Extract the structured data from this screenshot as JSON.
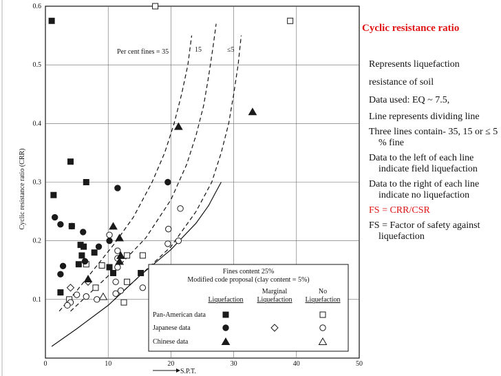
{
  "side_panel": {
    "title": "Cyclic resistance ratio",
    "items": [
      "Represents liquefaction",
      "resistance of soil",
      "Data used: EQ ~ 7.5,",
      "Line represents dividing line",
      "Three lines contain- 35, 15 or ≤ 5 % fine",
      "Data to the left of each line indicate field liquefaction",
      "Data to the right of each line indicate no liquefaction",
      "FS = CRR/CSR",
      "FS = Factor of safety against liquefaction"
    ],
    "highlight_color": "#e01414"
  },
  "chart_data": {
    "type": "scatter",
    "xlabel": "S.P.T.",
    "ylabel": "Cyclic resistance ratio (CRR)",
    "xlim": [
      0,
      50
    ],
    "ylim": [
      0,
      0.6
    ],
    "x_ticks": [
      0,
      10,
      20,
      30,
      40,
      50
    ],
    "y_ticks": [
      0.1,
      0.2,
      0.3,
      0.4,
      0.5,
      0.6
    ],
    "grid": true,
    "curve_labels": [
      "Per cent fines = 35",
      "15",
      "≤5"
    ],
    "curves": [
      {
        "label": "Per cent fines = 35",
        "style": "dashed",
        "points": [
          [
            2.2,
            0.08
          ],
          [
            5,
            0.115
          ],
          [
            8,
            0.155
          ],
          [
            11,
            0.195
          ],
          [
            14,
            0.24
          ],
          [
            17,
            0.3
          ],
          [
            19,
            0.35
          ],
          [
            20.5,
            0.4
          ],
          [
            21.7,
            0.45
          ],
          [
            22.7,
            0.5
          ],
          [
            23.3,
            0.55
          ]
        ]
      },
      {
        "label": "15",
        "style": "dashed",
        "points": [
          [
            4,
            0.08
          ],
          [
            8,
            0.12
          ],
          [
            12,
            0.16
          ],
          [
            16,
            0.205
          ],
          [
            20,
            0.27
          ],
          [
            22.5,
            0.33
          ],
          [
            24,
            0.38
          ],
          [
            25.2,
            0.43
          ],
          [
            26,
            0.48
          ],
          [
            26.7,
            0.53
          ],
          [
            27.2,
            0.57
          ]
        ]
      },
      {
        "label": "≤5",
        "style": "dashed",
        "points": [
          [
            11,
            0.1
          ],
          [
            15,
            0.14
          ],
          [
            20,
            0.19
          ],
          [
            24,
            0.25
          ],
          [
            26.5,
            0.3
          ],
          [
            28,
            0.35
          ],
          [
            29.2,
            0.4
          ],
          [
            30,
            0.45
          ],
          [
            30.7,
            0.5
          ],
          [
            31.2,
            0.55
          ]
        ]
      },
      {
        "label": "",
        "style": "solid",
        "points": [
          [
            1,
            0.02
          ],
          [
            5,
            0.05
          ],
          [
            10,
            0.09
          ],
          [
            15,
            0.14
          ],
          [
            20,
            0.185
          ],
          [
            24,
            0.23
          ],
          [
            26,
            0.26
          ],
          [
            27,
            0.28
          ],
          [
            28,
            0.3
          ]
        ]
      }
    ],
    "series": [
      {
        "name": "Pan-American data",
        "marker": "square",
        "category": "Liquefaction",
        "points": [
          [
            1,
            0.575
          ],
          [
            1.3,
            0.278
          ],
          [
            4,
            0.335
          ],
          [
            6.5,
            0.3
          ],
          [
            4.2,
            0.225
          ],
          [
            5.6,
            0.193
          ],
          [
            6.1,
            0.19
          ],
          [
            5.8,
            0.175
          ],
          [
            5.3,
            0.16
          ],
          [
            7.8,
            0.18
          ],
          [
            10.2,
            0.155
          ],
          [
            10.8,
            0.145
          ],
          [
            15.2,
            0.145
          ],
          [
            2.4,
            0.112
          ]
        ]
      },
      {
        "name": "Pan-American data",
        "marker": "square",
        "category": "Non-Liquefaction",
        "points": [
          [
            17.5,
            0.6
          ],
          [
            39,
            0.575
          ],
          [
            13,
            0.175
          ],
          [
            15.5,
            0.175
          ],
          [
            6.5,
            0.16
          ],
          [
            9,
            0.158
          ],
          [
            13,
            0.13
          ],
          [
            3.8,
            0.1
          ],
          [
            8,
            0.12
          ],
          [
            12.5,
            0.095
          ],
          [
            21.2,
            0.09
          ]
        ]
      },
      {
        "name": "Japanese data",
        "marker": "circle",
        "category": "Liquefaction",
        "points": [
          [
            1.5,
            0.24
          ],
          [
            2.4,
            0.228
          ],
          [
            4.2,
            0.225
          ],
          [
            2.8,
            0.157
          ],
          [
            6,
            0.215
          ],
          [
            6.3,
            0.165
          ],
          [
            2.4,
            0.143
          ],
          [
            8.5,
            0.19
          ],
          [
            10.2,
            0.2
          ],
          [
            11.5,
            0.29
          ],
          [
            19.5,
            0.3
          ]
        ]
      },
      {
        "name": "Japanese data",
        "marker": "circle",
        "category": "Non-Liquefaction",
        "points": [
          [
            10.2,
            0.21
          ],
          [
            21.5,
            0.255
          ],
          [
            19.6,
            0.22
          ],
          [
            21.2,
            0.2
          ],
          [
            19.5,
            0.195
          ],
          [
            11.5,
            0.183
          ],
          [
            11.5,
            0.17
          ],
          [
            11.5,
            0.155
          ],
          [
            11.2,
            0.13
          ],
          [
            12,
            0.115
          ],
          [
            11.2,
            0.11
          ],
          [
            15.5,
            0.12
          ],
          [
            19.5,
            0.12
          ],
          [
            6.5,
            0.105
          ],
          [
            8.2,
            0.1
          ],
          [
            5,
            0.108
          ],
          [
            4,
            0.095
          ],
          [
            3.5,
            0.09
          ]
        ]
      },
      {
        "name": "Japanese data",
        "marker": "diamond",
        "category": "Marginal Liquefaction",
        "points": [
          [
            6.8,
            0.13
          ],
          [
            4,
            0.12
          ]
        ]
      },
      {
        "name": "Chinese data",
        "marker": "triangle",
        "category": "Liquefaction",
        "points": [
          [
            33,
            0.42
          ],
          [
            21.2,
            0.395
          ],
          [
            10.8,
            0.225
          ],
          [
            11.8,
            0.205
          ],
          [
            12,
            0.175
          ],
          [
            11.8,
            0.165
          ],
          [
            6.8,
            0.135
          ]
        ]
      },
      {
        "name": "Chinese data",
        "marker": "triangle",
        "category": "Non-Liquefaction",
        "points": [
          [
            9.2,
            0.105
          ]
        ]
      }
    ],
    "legend": {
      "placement": "bottom-right",
      "title": "Fines content 25%",
      "subtitle": "Modified code proposal (clay content = 5%)",
      "columns": [
        "Liquefaction",
        "Marginal Liquefaction",
        "No Liquefaction"
      ],
      "column_display": [
        [
          "Liquefaction"
        ],
        [
          "Marginal",
          "Liquefaction"
        ],
        [
          "No",
          "Liquefaction"
        ]
      ],
      "rows": [
        "Pan-American data",
        "Japanese data",
        "Chinese data"
      ]
    }
  }
}
